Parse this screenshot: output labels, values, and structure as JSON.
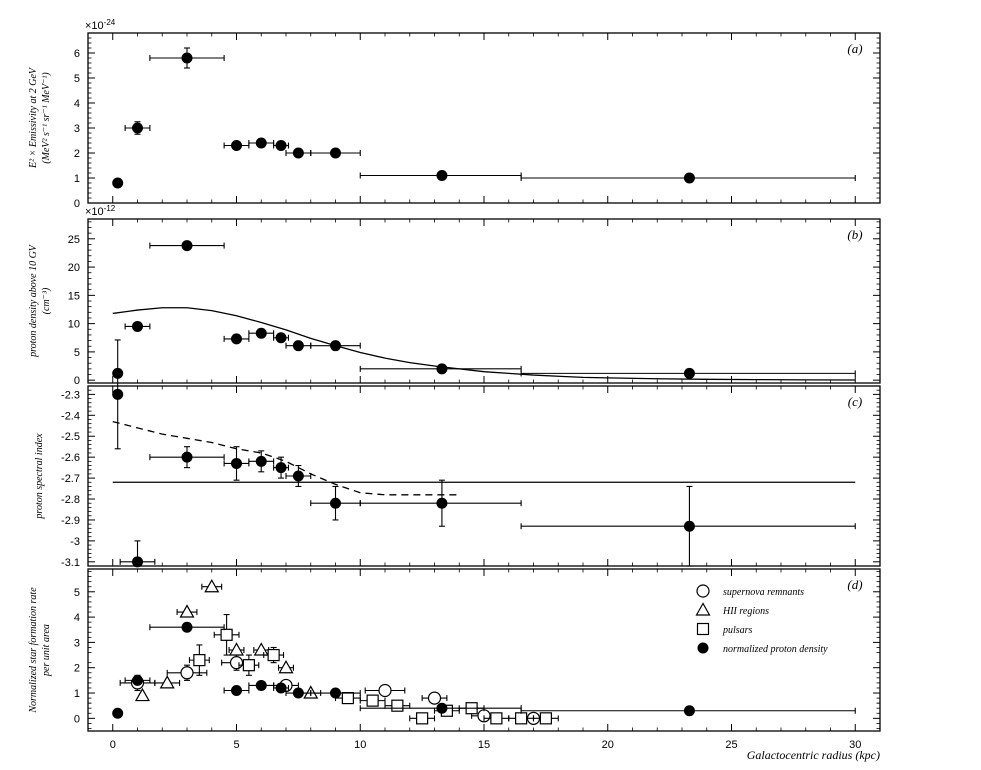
{
  "chart_data": [
    {
      "type": "scatter",
      "panel_label": "(a)",
      "ylabel_line1": "E² × Emissivity at 2 GeV",
      "ylabel_line2": "(MeV² s⁻¹ sr⁻¹ MeV⁻¹)",
      "yexponent": "×10-24",
      "xlim": [
        -1,
        31
      ],
      "ylim": [
        0,
        6.8
      ],
      "yticks": [
        0,
        1,
        2,
        3,
        4,
        5,
        6
      ],
      "ytick_labels": [
        "0",
        "1",
        "2",
        "3",
        "4",
        "5",
        "6"
      ],
      "series": [
        {
          "marker": "filled-circle",
          "points": [
            {
              "x": 0.2,
              "y": 0.8
            },
            {
              "x": 1.0,
              "y": 3.0,
              "xerr": [
                0.5,
                0.5
              ],
              "yerr": [
                0.25,
                0.25
              ]
            },
            {
              "x": 3.0,
              "y": 5.8,
              "xerr": [
                1.5,
                1.5
              ],
              "yerr": [
                0.4,
                0.4
              ]
            },
            {
              "x": 5.0,
              "y": 2.3,
              "xerr": [
                0.5,
                0.5
              ]
            },
            {
              "x": 6.0,
              "y": 2.4,
              "xerr": [
                0.5,
                0.5
              ]
            },
            {
              "x": 6.8,
              "y": 2.3,
              "xerr": [
                0.3,
                0.3
              ]
            },
            {
              "x": 7.5,
              "y": 2.0,
              "xerr": [
                0.5,
                0.5
              ]
            },
            {
              "x": 9.0,
              "y": 2.0,
              "xerr": [
                1.0,
                1.0
              ]
            },
            {
              "x": 13.3,
              "y": 1.1,
              "xerr": [
                3.3,
                3.2
              ]
            },
            {
              "x": 23.3,
              "y": 1.0,
              "xerr": [
                6.8,
                6.7
              ]
            }
          ]
        }
      ],
      "lines": []
    },
    {
      "type": "scatter",
      "panel_label": "(b)",
      "ylabel_line1": "proton density above 10 GV",
      "ylabel_line2": "(cm⁻³)",
      "yexponent": "×10-12",
      "xlim": [
        -1,
        31
      ],
      "ylim": [
        -0.5,
        28.5
      ],
      "yticks": [
        0,
        5,
        10,
        15,
        20,
        25
      ],
      "ytick_labels": [
        "0",
        "5",
        "10",
        "15",
        "20",
        "25"
      ],
      "series": [
        {
          "marker": "filled-circle",
          "points": [
            {
              "x": 0.2,
              "y": 1.2
            },
            {
              "x": 1.0,
              "y": 9.5,
              "xerr": [
                0.5,
                0.5
              ]
            },
            {
              "x": 3.0,
              "y": 23.8,
              "xerr": [
                1.5,
                1.5
              ]
            },
            {
              "x": 5.0,
              "y": 7.3,
              "xerr": [
                0.5,
                0.5
              ]
            },
            {
              "x": 6.0,
              "y": 8.3,
              "xerr": [
                0.5,
                0.5
              ]
            },
            {
              "x": 6.8,
              "y": 7.5,
              "xerr": [
                0.3,
                0.3
              ]
            },
            {
              "x": 7.5,
              "y": 6.1,
              "xerr": [
                0.5,
                0.5
              ]
            },
            {
              "x": 9.0,
              "y": 6.1,
              "xerr": [
                1.0,
                1.0
              ]
            },
            {
              "x": 13.3,
              "y": 2.0,
              "xerr": [
                3.3,
                3.2
              ]
            },
            {
              "x": 23.3,
              "y": 1.2,
              "xerr": [
                6.8,
                6.7
              ]
            }
          ]
        }
      ],
      "lines": [
        {
          "style": "solid",
          "x": [
            0,
            1,
            2,
            3,
            4,
            5,
            6,
            7,
            8,
            9,
            10,
            11,
            12,
            13,
            14,
            15,
            16,
            17,
            18,
            19,
            20,
            22,
            24,
            26,
            28,
            30
          ],
          "y": [
            11.8,
            12.4,
            12.8,
            12.8,
            12.3,
            11.4,
            10.2,
            8.9,
            7.4,
            6.1,
            4.9,
            3.9,
            3.1,
            2.5,
            2.0,
            1.5,
            1.2,
            0.9,
            0.7,
            0.5,
            0.4,
            0.25,
            0.15,
            0.1,
            0.05,
            0.03
          ]
        }
      ]
    },
    {
      "type": "scatter",
      "panel_label": "(c)",
      "ylabel_line1": "proton spectral index",
      "ylabel_line2": "",
      "yexponent": "",
      "xlim": [
        -1,
        31
      ],
      "ylim": [
        -3.12,
        -2.26
      ],
      "yticks": [
        -3.1,
        -3.0,
        -2.9,
        -2.8,
        -2.7,
        -2.6,
        -2.5,
        -2.4,
        -2.3
      ],
      "ytick_labels": [
        "-3.1",
        "-3",
        "-2.9",
        "-2.8",
        "-2.7",
        "-2.6",
        "-2.5",
        "-2.4",
        "-2.3"
      ],
      "series": [
        {
          "marker": "filled-circle",
          "points": [
            {
              "x": 0.2,
              "y": -2.3,
              "yerr": [
                0.26,
                0.26
              ]
            },
            {
              "x": 1.0,
              "y": -3.1,
              "xerr": [
                0.7,
                0.7
              ],
              "yerr": [
                0.0,
                0.1
              ]
            },
            {
              "x": 3.0,
              "y": -2.6,
              "xerr": [
                1.5,
                1.5
              ],
              "yerr": [
                0.05,
                0.05
              ]
            },
            {
              "x": 5.0,
              "y": -2.63,
              "xerr": [
                0.5,
                0.5
              ],
              "yerr": [
                0.08,
                0.08
              ]
            },
            {
              "x": 6.0,
              "y": -2.62,
              "xerr": [
                0.5,
                0.5
              ],
              "yerr": [
                0.05,
                0.05
              ]
            },
            {
              "x": 6.8,
              "y": -2.65,
              "xerr": [
                0.3,
                0.3
              ],
              "yerr": [
                0.05,
                0.05
              ]
            },
            {
              "x": 7.5,
              "y": -2.69,
              "xerr": [
                0.5,
                0.5
              ],
              "yerr": [
                0.05,
                0.05
              ]
            },
            {
              "x": 9.0,
              "y": -2.82,
              "xerr": [
                1.0,
                1.0
              ],
              "yerr": [
                0.08,
                0.08
              ]
            },
            {
              "x": 13.3,
              "y": -2.82,
              "xerr": [
                3.3,
                3.2
              ],
              "yerr": [
                0.11,
                0.11
              ]
            },
            {
              "x": 23.3,
              "y": -2.93,
              "xerr": [
                6.8,
                6.7
              ],
              "yerr": [
                0.19,
                0.19
              ]
            }
          ]
        }
      ],
      "lines": [
        {
          "style": "dashed",
          "x": [
            0,
            1,
            2,
            3,
            4,
            5,
            6,
            7,
            8,
            9,
            10,
            11,
            12,
            13,
            14
          ],
          "y": [
            -2.43,
            -2.46,
            -2.49,
            -2.51,
            -2.53,
            -2.56,
            -2.58,
            -2.62,
            -2.68,
            -2.73,
            -2.77,
            -2.78,
            -2.78,
            -2.78,
            -2.78
          ]
        },
        {
          "style": "solid",
          "x": [
            0,
            30
          ],
          "y": [
            -2.72,
            -2.72
          ]
        }
      ]
    },
    {
      "type": "scatter",
      "panel_label": "(d)",
      "ylabel_line1": "Normalized star formation rate",
      "ylabel_line2": "per unit area",
      "yexponent": "",
      "xlim": [
        -1,
        31
      ],
      "ylim": [
        -0.5,
        5.9
      ],
      "yticks": [
        0,
        1,
        2,
        3,
        4,
        5
      ],
      "ytick_labels": [
        "0",
        "1",
        "2",
        "3",
        "4",
        "5"
      ],
      "xticks": [
        0,
        5,
        10,
        15,
        20,
        25,
        30
      ],
      "xtick_labels": [
        "0",
        "5",
        "10",
        "15",
        "20",
        "25",
        "30"
      ],
      "xlabel": "Galactocentric radius (kpc)",
      "legend": [
        {
          "marker": "open-circle",
          "label": "supernova remnants"
        },
        {
          "marker": "open-triangle",
          "label": "HII regions"
        },
        {
          "marker": "open-square",
          "label": "pulsars"
        },
        {
          "marker": "filled-circle",
          "label": "normalized proton density"
        }
      ],
      "series": [
        {
          "name": "supernova remnants",
          "marker": "open-circle",
          "points": [
            {
              "x": 1.0,
              "y": 1.4,
              "xerr": [
                0.7,
                0.7
              ],
              "yerr": [
                0.3,
                0.3
              ]
            },
            {
              "x": 3.0,
              "y": 1.8,
              "xerr": [
                0.8,
                0.8
              ],
              "yerr": [
                0.3,
                0.3
              ]
            },
            {
              "x": 5.0,
              "y": 2.2,
              "xerr": [
                0.6,
                0.6
              ],
              "yerr": [
                0.3,
                0.3
              ]
            },
            {
              "x": 7.0,
              "y": 1.3,
              "xerr": [
                0.5,
                0.5
              ],
              "yerr": [
                0.2,
                0.2
              ]
            },
            {
              "x": 11.0,
              "y": 1.1,
              "xerr": [
                0.8,
                0.8
              ],
              "yerr": [
                0.2,
                0.2
              ]
            },
            {
              "x": 13.0,
              "y": 0.8,
              "xerr": [
                0.5,
                0.5
              ],
              "yerr": [
                0.15,
                0.15
              ]
            },
            {
              "x": 15.0,
              "y": 0.1,
              "xerr": [
                0.5,
                0.5
              ],
              "yerr": [
                0.1,
                0.1
              ]
            },
            {
              "x": 17.0,
              "y": 0.0,
              "xerr": [
                0.5,
                0.5
              ],
              "yerr": [
                0.1,
                0.1
              ]
            }
          ]
        },
        {
          "name": "HII regions",
          "marker": "open-triangle",
          "points": [
            {
              "x": 1.2,
              "y": 0.9
            },
            {
              "x": 2.2,
              "y": 1.4,
              "xerr": [
                0.5,
                0.5
              ]
            },
            {
              "x": 3.0,
              "y": 4.2,
              "xerr": [
                0.4,
                0.4
              ]
            },
            {
              "x": 4.0,
              "y": 5.2,
              "xerr": [
                0.4,
                0.4
              ]
            },
            {
              "x": 5.0,
              "y": 2.7,
              "xerr": [
                0.3,
                0.3
              ]
            },
            {
              "x": 6.0,
              "y": 2.7,
              "xerr": [
                0.3,
                0.3
              ]
            },
            {
              "x": 7.0,
              "y": 2.0,
              "xerr": [
                0.3,
                0.3
              ]
            },
            {
              "x": 8.0,
              "y": 1.0,
              "xerr": [
                0.4,
                0.4
              ]
            }
          ]
        },
        {
          "name": "pulsars",
          "marker": "open-square",
          "points": [
            {
              "x": 3.5,
              "y": 2.3,
              "xerr": [
                0.4,
                0.4
              ],
              "yerr": [
                0.6,
                0.6
              ]
            },
            {
              "x": 4.6,
              "y": 3.3,
              "xerr": [
                0.5,
                0.5
              ],
              "yerr": [
                0.8,
                0.8
              ]
            },
            {
              "x": 5.5,
              "y": 2.1,
              "xerr": [
                0.4,
                0.4
              ],
              "yerr": [
                0.4,
                0.4
              ]
            },
            {
              "x": 6.5,
              "y": 2.5,
              "xerr": [
                0.4,
                0.4
              ],
              "yerr": [
                0.3,
                0.3
              ]
            },
            {
              "x": 9.5,
              "y": 0.8,
              "xerr": [
                0.5,
                0.5
              ],
              "yerr": [
                0.2,
                0.2
              ]
            },
            {
              "x": 10.5,
              "y": 0.7,
              "xerr": [
                0.5,
                0.5
              ],
              "yerr": [
                0.2,
                0.2
              ]
            },
            {
              "x": 11.5,
              "y": 0.5,
              "xerr": [
                0.5,
                0.5
              ],
              "yerr": [
                0.2,
                0.2
              ]
            },
            {
              "x": 12.5,
              "y": 0.0,
              "xerr": [
                0.5,
                0.5
              ],
              "yerr": [
                0.2,
                0.2
              ]
            },
            {
              "x": 13.5,
              "y": 0.3,
              "xerr": [
                0.5,
                0.5
              ],
              "yerr": [
                0.2,
                0.2
              ]
            },
            {
              "x": 14.5,
              "y": 0.4,
              "xerr": [
                0.5,
                0.5
              ],
              "yerr": [
                0.2,
                0.2
              ]
            },
            {
              "x": 15.5,
              "y": 0.0,
              "xerr": [
                0.5,
                0.5
              ],
              "yerr": [
                0.2,
                0.2
              ]
            },
            {
              "x": 16.5,
              "y": 0.0,
              "xerr": [
                0.5,
                0.5
              ],
              "yerr": [
                0.2,
                0.2
              ]
            },
            {
              "x": 17.5,
              "y": 0.0,
              "xerr": [
                0.5,
                0.5
              ],
              "yerr": [
                0.2,
                0.2
              ]
            }
          ]
        },
        {
          "name": "normalized proton density",
          "marker": "filled-circle",
          "points": [
            {
              "x": 0.2,
              "y": 0.2
            },
            {
              "x": 1.0,
              "y": 1.5,
              "xerr": [
                0.5,
                0.5
              ]
            },
            {
              "x": 3.0,
              "y": 3.6,
              "xerr": [
                1.5,
                1.5
              ]
            },
            {
              "x": 5.0,
              "y": 1.1,
              "xerr": [
                0.5,
                0.5
              ]
            },
            {
              "x": 6.0,
              "y": 1.3,
              "xerr": [
                0.5,
                0.5
              ]
            },
            {
              "x": 6.8,
              "y": 1.2,
              "xerr": [
                0.3,
                0.3
              ]
            },
            {
              "x": 7.5,
              "y": 1.0,
              "xerr": [
                0.5,
                0.5
              ]
            },
            {
              "x": 9.0,
              "y": 1.0,
              "xerr": [
                1.0,
                1.0
              ]
            },
            {
              "x": 13.3,
              "y": 0.4,
              "xerr": [
                3.3,
                3.2
              ]
            },
            {
              "x": 23.3,
              "y": 0.3,
              "xerr": [
                6.8,
                6.7
              ]
            }
          ]
        }
      ],
      "lines": []
    }
  ]
}
